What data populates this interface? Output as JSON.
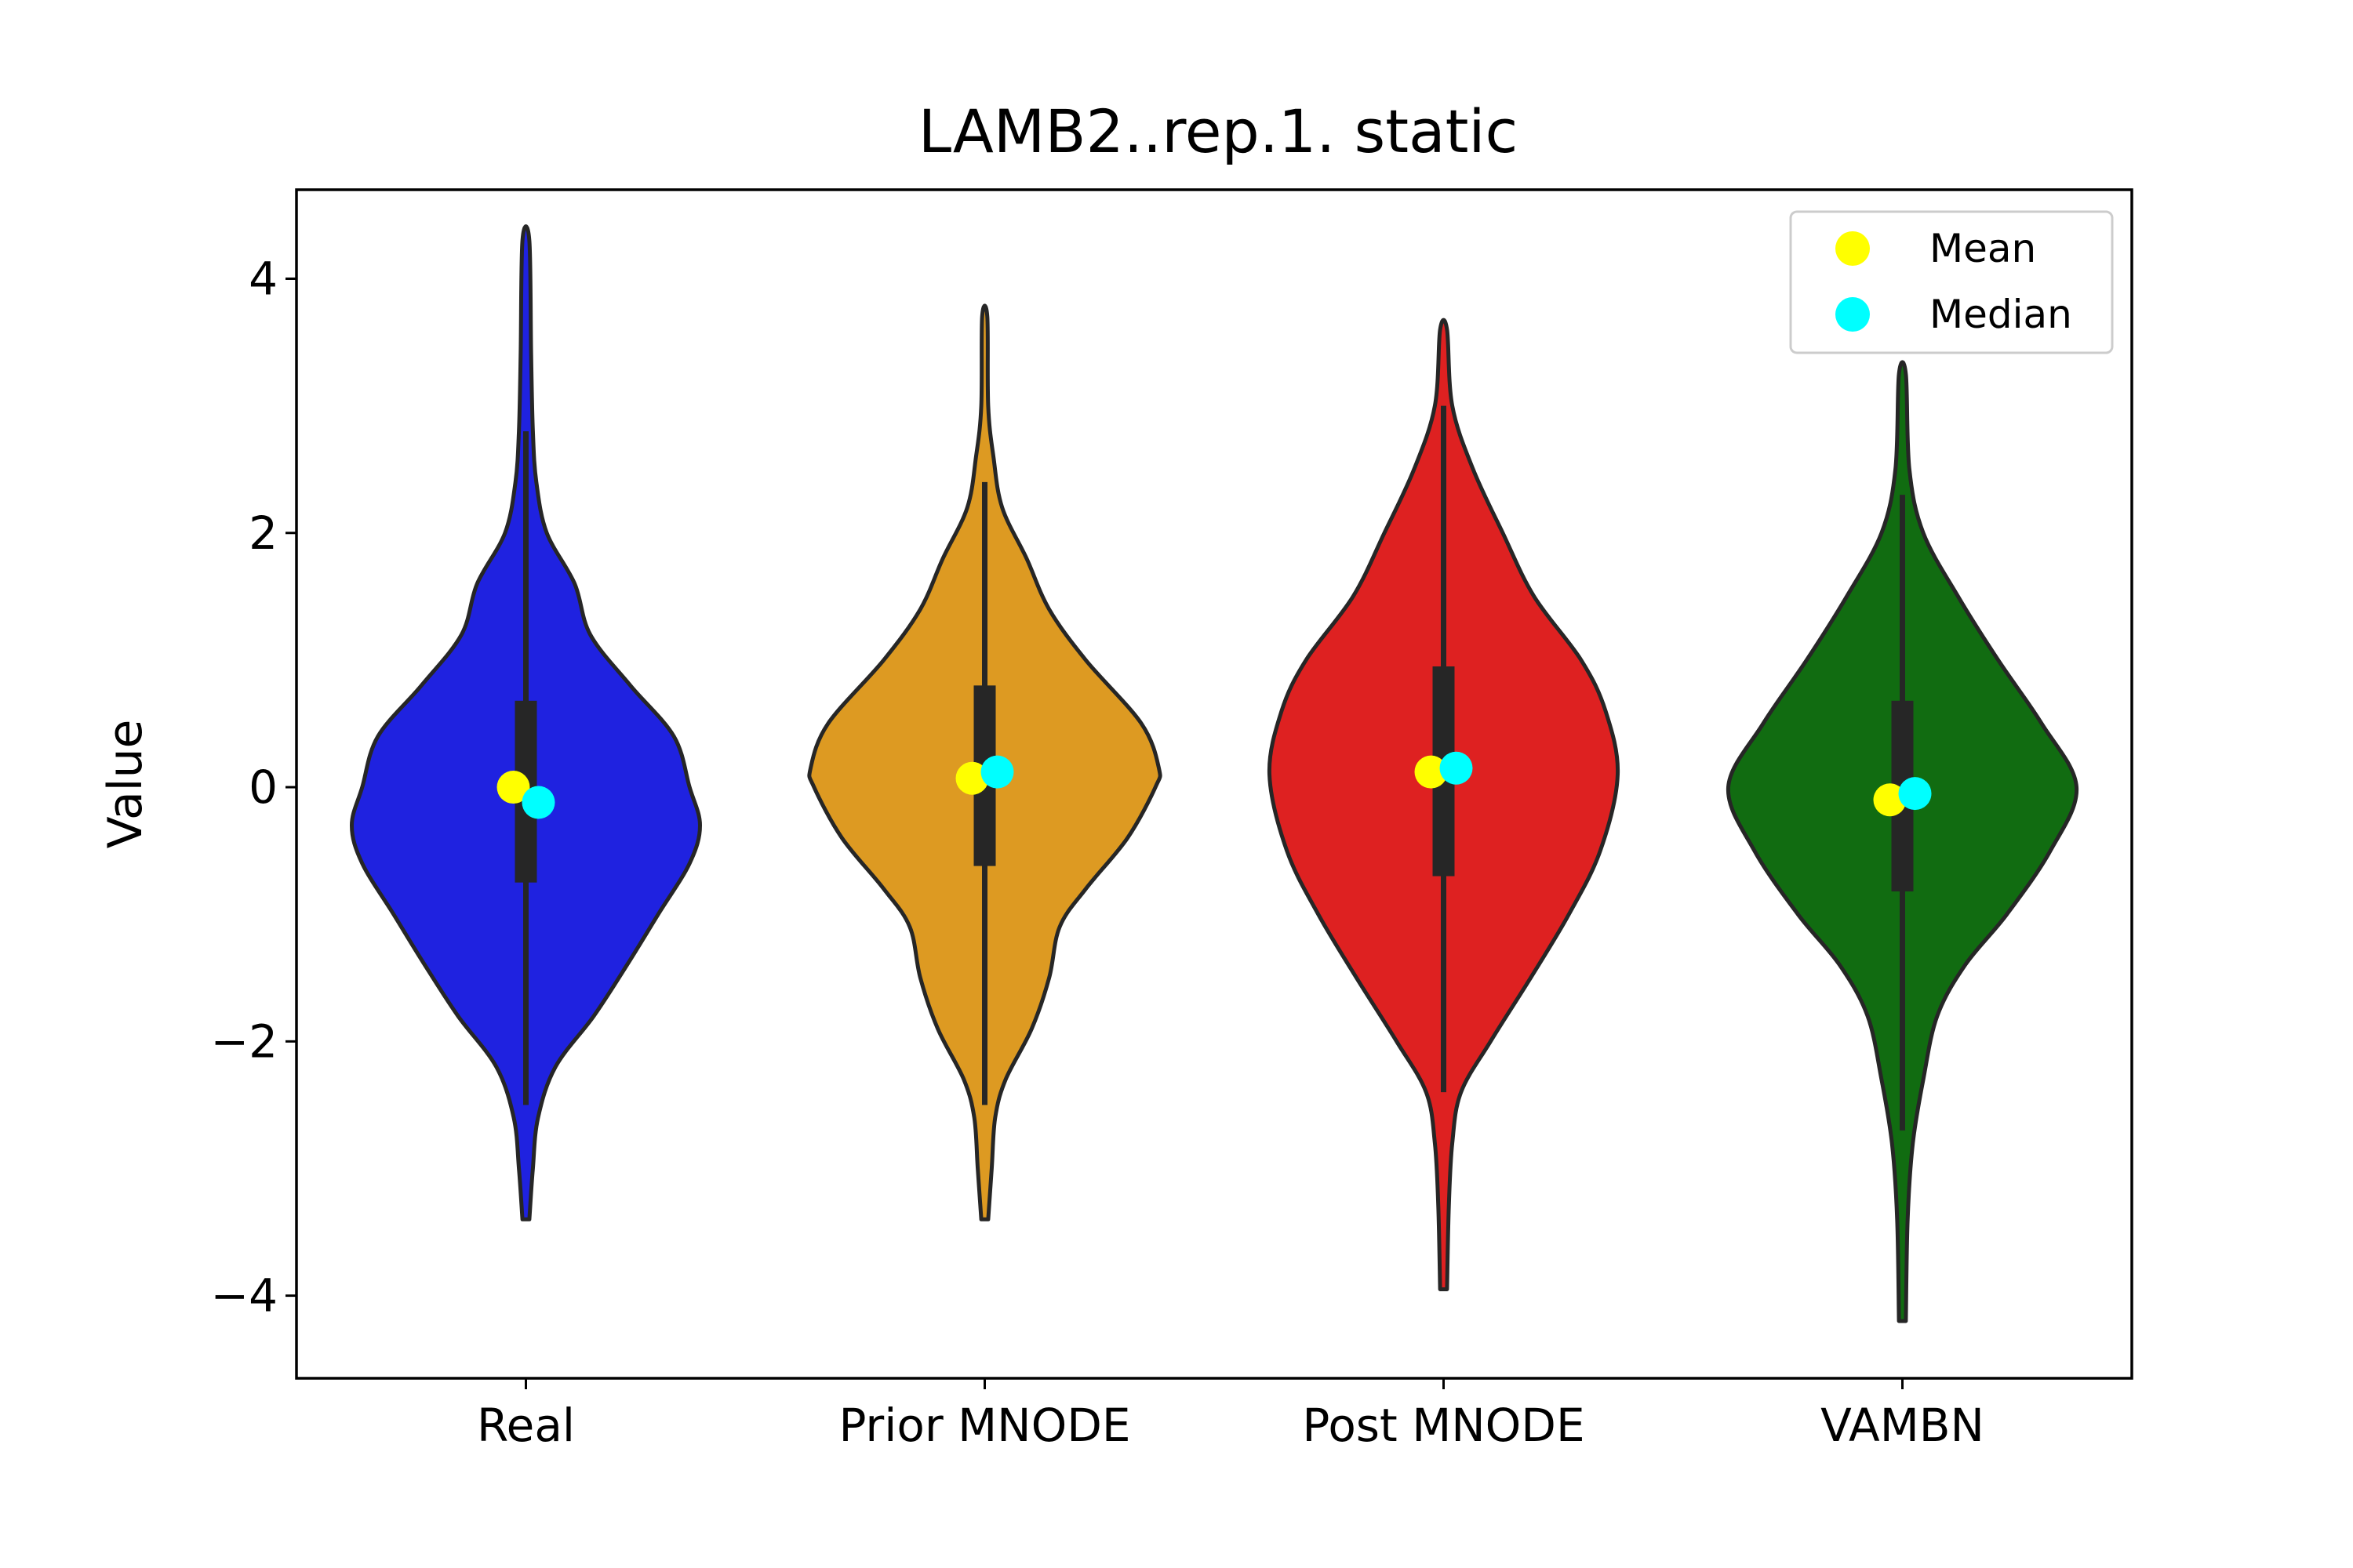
{
  "chart_data": {
    "type": "violin",
    "title": "LAMB2..rep.1. static",
    "xlabel": "",
    "ylabel": "Value",
    "ylim": [
      -4.65,
      4.7
    ],
    "yticks": [
      4,
      2,
      0,
      -2,
      -4
    ],
    "ytick_labels": [
      "4",
      "2",
      "0",
      "−2",
      "−4"
    ],
    "legend": {
      "position": "top-right",
      "entries": [
        {
          "label": "Mean",
          "color": "#ffff00"
        },
        {
          "label": "Median",
          "color": "#00ffff"
        }
      ]
    },
    "categories": [
      "Real",
      "Prior MNODE",
      "Post MNODE",
      "VAMBN"
    ],
    "series": [
      {
        "category": "Real",
        "color": "#1f22e0",
        "min": -3.4,
        "max": 4.3,
        "q1": -0.75,
        "q3": 0.68,
        "whisker_low": -2.5,
        "whisker_high": 2.8,
        "mean": 0.0,
        "median": -0.12,
        "density": [
          [
            -3.4,
            0.02
          ],
          [
            -3.0,
            0.04
          ],
          [
            -2.6,
            0.07
          ],
          [
            -2.2,
            0.17
          ],
          [
            -1.8,
            0.39
          ],
          [
            -1.4,
            0.58
          ],
          [
            -1.0,
            0.76
          ],
          [
            -0.6,
            0.94
          ],
          [
            -0.3,
            1.0
          ],
          [
            0.0,
            0.94
          ],
          [
            0.4,
            0.85
          ],
          [
            0.8,
            0.6
          ],
          [
            1.2,
            0.37
          ],
          [
            1.6,
            0.28
          ],
          [
            2.0,
            0.12
          ],
          [
            2.4,
            0.06
          ],
          [
            2.8,
            0.04
          ],
          [
            3.4,
            0.03
          ],
          [
            4.3,
            0.02
          ]
        ]
      },
      {
        "category": "Prior MNODE",
        "color": "#dd9a22",
        "min": -3.4,
        "max": 3.7,
        "q1": -0.62,
        "q3": 0.8,
        "whisker_low": -2.5,
        "whisker_high": 2.4,
        "mean": 0.07,
        "median": 0.12,
        "density": [
          [
            -3.4,
            0.02
          ],
          [
            -3.0,
            0.04
          ],
          [
            -2.6,
            0.06
          ],
          [
            -2.3,
            0.12
          ],
          [
            -1.9,
            0.27
          ],
          [
            -1.5,
            0.37
          ],
          [
            -1.1,
            0.43
          ],
          [
            -0.8,
            0.58
          ],
          [
            -0.4,
            0.82
          ],
          [
            0.0,
            0.98
          ],
          [
            0.15,
            1.0
          ],
          [
            0.5,
            0.9
          ],
          [
            1.0,
            0.58
          ],
          [
            1.4,
            0.37
          ],
          [
            1.8,
            0.24
          ],
          [
            2.2,
            0.1
          ],
          [
            2.6,
            0.05
          ],
          [
            3.0,
            0.02
          ],
          [
            3.7,
            0.015
          ]
        ]
      },
      {
        "category": "Post MNODE",
        "color": "#de2121",
        "min": -3.95,
        "max": 3.6,
        "q1": -0.7,
        "q3": 0.95,
        "whisker_low": -2.4,
        "whisker_high": 3.0,
        "mean": 0.12,
        "median": 0.15,
        "density": [
          [
            -3.95,
            0.02
          ],
          [
            -3.3,
            0.03
          ],
          [
            -2.8,
            0.05
          ],
          [
            -2.4,
            0.1
          ],
          [
            -2.0,
            0.27
          ],
          [
            -1.5,
            0.5
          ],
          [
            -1.0,
            0.72
          ],
          [
            -0.5,
            0.9
          ],
          [
            0.1,
            1.0
          ],
          [
            0.6,
            0.93
          ],
          [
            1.0,
            0.79
          ],
          [
            1.5,
            0.52
          ],
          [
            2.0,
            0.34
          ],
          [
            2.5,
            0.17
          ],
          [
            3.0,
            0.05
          ],
          [
            3.6,
            0.02
          ]
        ]
      },
      {
        "category": "VAMBN",
        "color": "#116c11",
        "min": -4.2,
        "max": 3.25,
        "q1": -0.82,
        "q3": 0.68,
        "whisker_low": -2.7,
        "whisker_high": 2.3,
        "mean": -0.1,
        "median": -0.05,
        "density": [
          [
            -4.2,
            0.02
          ],
          [
            -3.4,
            0.03
          ],
          [
            -2.8,
            0.06
          ],
          [
            -2.3,
            0.12
          ],
          [
            -1.8,
            0.2
          ],
          [
            -1.4,
            0.36
          ],
          [
            -1.0,
            0.6
          ],
          [
            -0.5,
            0.85
          ],
          [
            0.0,
            1.0
          ],
          [
            0.5,
            0.8
          ],
          [
            1.0,
            0.55
          ],
          [
            1.5,
            0.32
          ],
          [
            2.0,
            0.12
          ],
          [
            2.5,
            0.04
          ],
          [
            3.25,
            0.02
          ]
        ]
      }
    ]
  }
}
